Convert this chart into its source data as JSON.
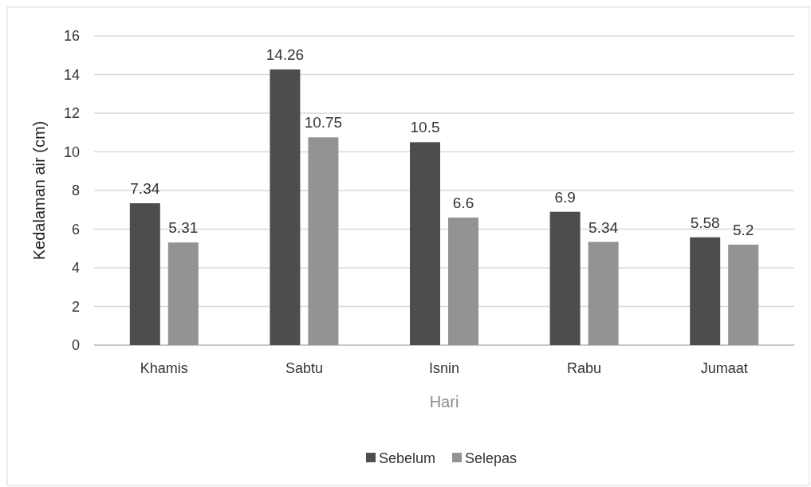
{
  "chart_data": {
    "type": "bar",
    "xlabel": "Hari",
    "ylabel": "Kedalaman air (cm)",
    "categories": [
      "Khamis",
      "Sabtu",
      "Isnin",
      "Rabu",
      "Jumaat"
    ],
    "series": [
      {
        "name": "Sebelum",
        "color": "#4d4d4d",
        "values": [
          7.34,
          14.26,
          10.5,
          6.9,
          5.58
        ]
      },
      {
        "name": "Selepas",
        "color": "#939393",
        "values": [
          5.31,
          10.75,
          6.6,
          5.34,
          5.2
        ]
      }
    ],
    "ylim": [
      0,
      16
    ],
    "yticks": [
      0,
      2,
      4,
      6,
      8,
      10,
      12,
      14,
      16
    ],
    "grid": "y",
    "legend": "bottom",
    "data_labels": true
  }
}
